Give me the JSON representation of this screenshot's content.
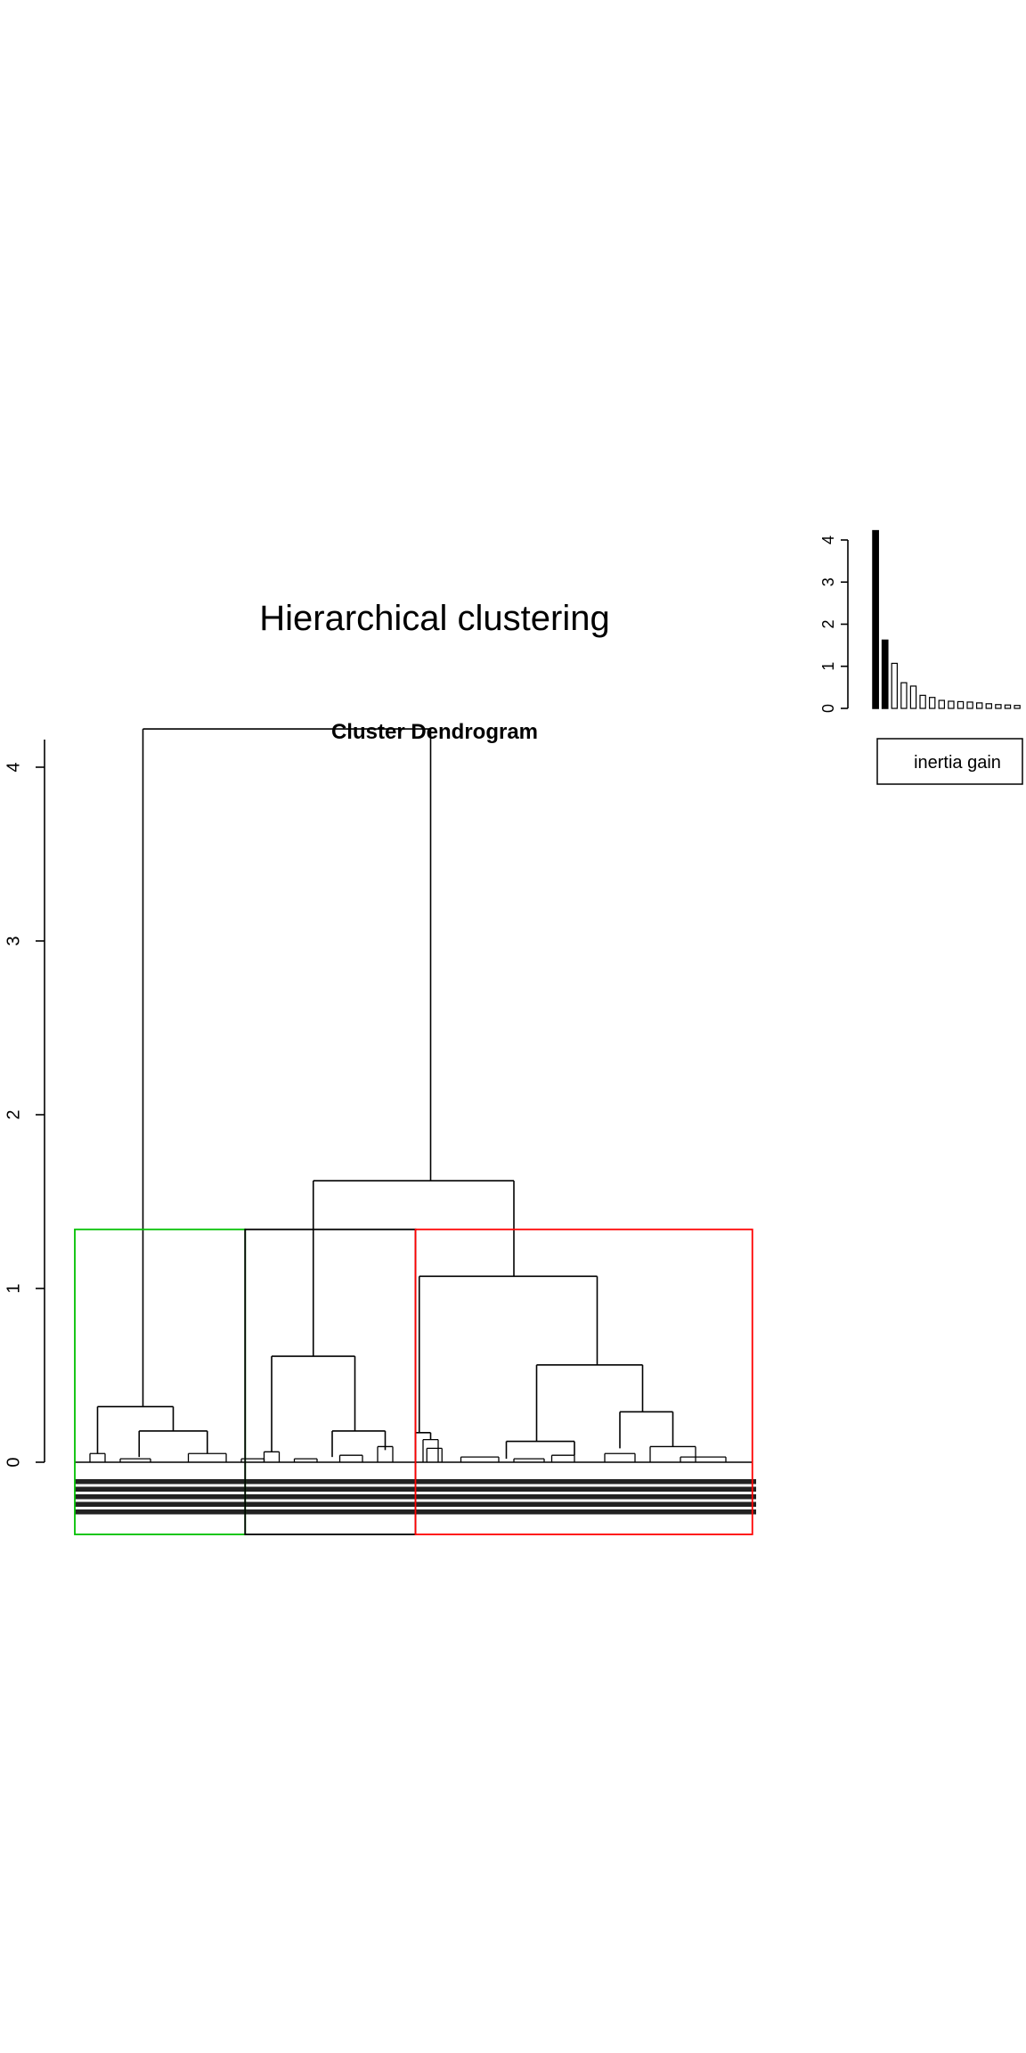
{
  "main_title": "Hierarchical clustering",
  "chart_data": [
    {
      "type": "bar",
      "title": "",
      "legend": {
        "label": "inertia gain",
        "placement": "below"
      },
      "values": [
        4.22,
        1.62,
        1.07,
        0.61,
        0.53,
        0.31,
        0.26,
        0.19,
        0.17,
        0.16,
        0.15,
        0.13,
        0.11,
        0.09,
        0.08,
        0.07
      ],
      "highlighted_count": 2,
      "ylim": [
        0,
        4.3
      ],
      "yticks": [
        "0",
        "1",
        "2",
        "3",
        "4"
      ],
      "colors": {
        "highlighted": "#000000",
        "other": "#ffffff",
        "border": "#000000"
      }
    },
    {
      "type": "dendrogram",
      "title": "Cluster Dendrogram",
      "ylim": [
        0,
        4.35
      ],
      "yticks": [
        "0",
        "1",
        "2",
        "3",
        "4"
      ],
      "cut_height": 1.34,
      "clusters": [
        {
          "color": "#00c000",
          "x_range": [
            0.04,
            0.265
          ]
        },
        {
          "color": "#000000",
          "x_range": [
            0.265,
            0.49
          ]
        },
        {
          "color": "#ff0000",
          "x_range": [
            0.49,
            0.935
          ]
        }
      ],
      "merges": [
        {
          "height": 4.22,
          "left": 0.13,
          "right": 0.51
        },
        {
          "height": 1.62,
          "left": 0.355,
          "right": 0.62
        },
        {
          "height": 1.07,
          "left": 0.495,
          "right": 0.73
        },
        {
          "height": 0.61,
          "left": 0.3,
          "right": 0.41
        },
        {
          "height": 0.56,
          "left": 0.65,
          "right": 0.79
        },
        {
          "height": 0.32,
          "left": 0.07,
          "right": 0.17
        },
        {
          "height": 0.29,
          "left": 0.76,
          "right": 0.83
        },
        {
          "height": 0.18,
          "left": 0.125,
          "right": 0.215
        },
        {
          "height": 0.18,
          "left": 0.38,
          "right": 0.45
        },
        {
          "height": 0.17,
          "left": 0.49,
          "right": 0.51
        },
        {
          "height": 0.12,
          "left": 0.61,
          "right": 0.7
        }
      ]
    }
  ]
}
